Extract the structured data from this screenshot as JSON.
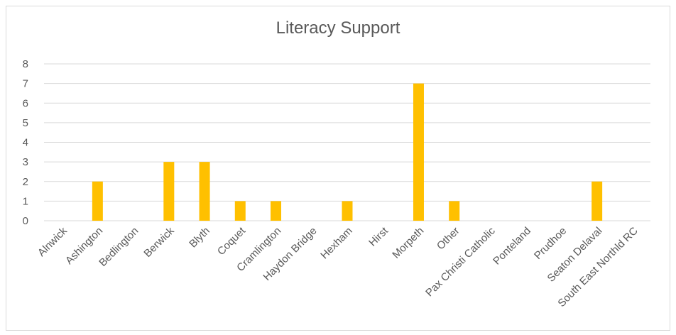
{
  "chart_data": {
    "type": "bar",
    "title": "Literacy Support",
    "xlabel": "",
    "ylabel": "",
    "ylim": [
      0,
      8
    ],
    "yticks": [
      0,
      1,
      2,
      3,
      4,
      5,
      6,
      7,
      8
    ],
    "grid": true,
    "legend": "none",
    "bar_color": "#ffc000",
    "categories": [
      "Alnwick",
      "Ashington",
      "Bedlington",
      "Berwick",
      "Blyth",
      "Coquet",
      "Cramlington",
      "Haydon Bridge",
      "Hexham",
      "Hirst",
      "Morpeth",
      "Other",
      "Pax Christi Catholic",
      "Ponteland",
      "Prudhoe",
      "Seaton Delaval",
      "South East Northld RC"
    ],
    "values": [
      0,
      2,
      0,
      3,
      3,
      1,
      1,
      0,
      1,
      0,
      7,
      1,
      0,
      0,
      0,
      2,
      0
    ]
  }
}
